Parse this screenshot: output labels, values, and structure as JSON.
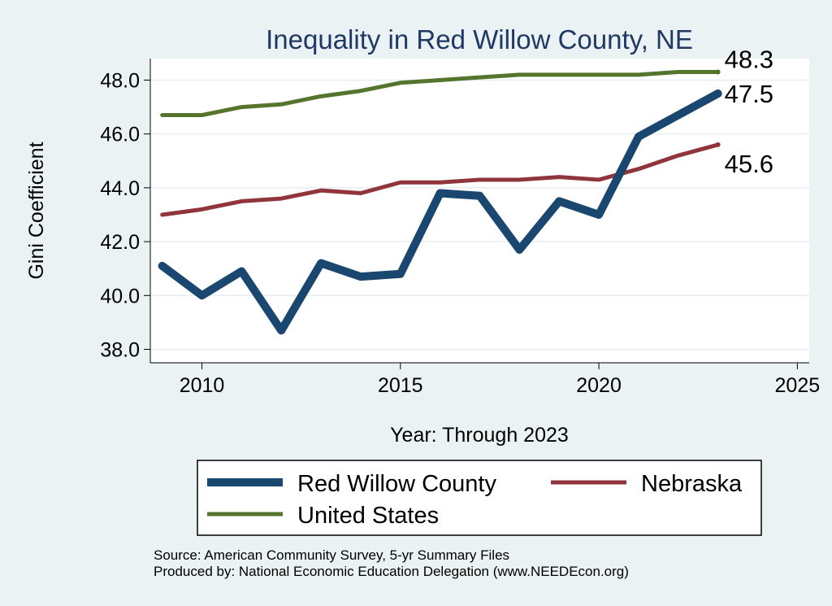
{
  "chart_data": {
    "type": "line",
    "title": "Inequality in Red Willow County, NE",
    "xlabel": "Year: Through 2023",
    "ylabel": "Gini Coefficient",
    "xlim": [
      2008.7,
      2025.3
    ],
    "ylim": [
      37.5,
      48.8
    ],
    "xticks": [
      2010,
      2015,
      2020,
      2025
    ],
    "xtick_labels": [
      "2010",
      "2015",
      "2020",
      "2025"
    ],
    "yticks": [
      38,
      40,
      42,
      44,
      46,
      48
    ],
    "ytick_labels": [
      "38.0",
      "40.0",
      "42.0",
      "44.0",
      "46.0",
      "48.0"
    ],
    "grid": true,
    "legend_position": "bottom",
    "x": [
      2009,
      2010,
      2011,
      2012,
      2013,
      2014,
      2015,
      2016,
      2017,
      2018,
      2019,
      2020,
      2021,
      2022,
      2023
    ],
    "series": [
      {
        "name": "Red Willow County",
        "color": "#1a476f",
        "values": [
          41.1,
          40.0,
          40.9,
          38.7,
          41.2,
          40.7,
          40.8,
          43.8,
          43.7,
          41.7,
          43.5,
          43.0,
          45.9,
          46.7,
          47.5
        ],
        "end_label": "47.5"
      },
      {
        "name": "Nebraska",
        "color": "#90353b",
        "values": [
          43.0,
          43.2,
          43.5,
          43.6,
          43.9,
          43.8,
          44.2,
          44.2,
          44.3,
          44.3,
          44.4,
          44.3,
          44.7,
          45.2,
          45.6
        ],
        "end_label": "45.6"
      },
      {
        "name": "United States",
        "color": "#55752f",
        "values": [
          46.7,
          46.7,
          47.0,
          47.1,
          47.4,
          47.6,
          47.9,
          48.0,
          48.1,
          48.2,
          48.2,
          48.2,
          48.2,
          48.3,
          48.3
        ],
        "end_label": "48.3"
      }
    ]
  },
  "source_lines": [
    "Source: American Community Survey, 5-yr Summary Files",
    "Produced by: National Economic Education Delegation (www.NEEDEcon.org)"
  ]
}
